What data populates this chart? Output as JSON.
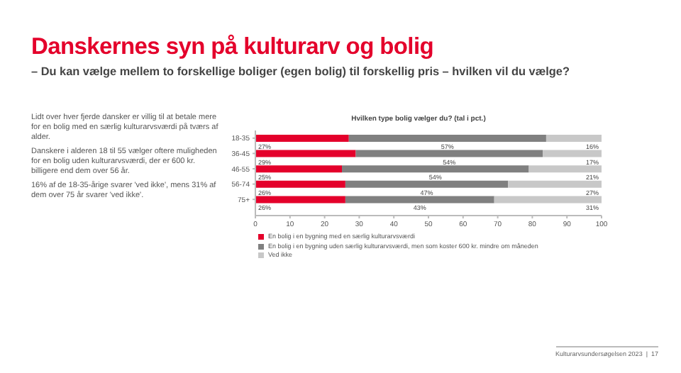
{
  "chart_data": {
    "type": "bar",
    "orientation": "horizontal",
    "stacked": true,
    "title": "Danskernes syn på kulturarv og bolig",
    "subtitle": "– Du kan vælge mellem to forskellige boliger (egen bolig) til forskellig pris – hvilken vil du vælge?",
    "annotations": [
      "Hvilken type bolig vælger du? (tal i pct.)",
      "Lidt over hver fjerde dansker er villig til at betale mere for en bolig med en særlig kulturarvsværdi på tværs af alder.",
      "Danskere i alderen 18 til 55 vælger oftere muligheden for en bolig uden kulturarvsværdi, der er 600 kr. billigere end dem over 56 år.",
      "16% af de 18-35-årige svarer 'ved ikke', mens 31% af dem over 75 år svarer 'ved ikke'.",
      "Kulturarvsundersøgelsen 2023  |  17"
    ],
    "categories": [
      "18-35",
      "36-45",
      "46-55",
      "56-74",
      "75+"
    ],
    "series": [
      {
        "name": "En bolig i en bygning med en særlig kulturarvsværdi",
        "color": "#e4002b",
        "values": [
          27,
          29,
          25,
          26,
          26
        ],
        "value_labels": [
          "27%",
          "29%",
          "25%",
          "26%",
          "26%"
        ]
      },
      {
        "name": "En bolig i en bygning uden særlig kulturarvsværdi, men som koster 600 kr. mindre om måneden",
        "color": "#808080",
        "values": [
          57,
          54,
          54,
          47,
          43
        ],
        "value_labels": [
          "57%",
          "54%",
          "54%",
          "47%",
          "43%"
        ]
      },
      {
        "name": "Ved ikke",
        "color": "#c8c8c8",
        "values": [
          16,
          17,
          21,
          27,
          31
        ],
        "value_labels": [
          "16%",
          "17%",
          "21%",
          "27%",
          "31%"
        ]
      }
    ],
    "xlim": [
      0,
      100
    ],
    "xticks": [
      0,
      10,
      20,
      30,
      40,
      50,
      60,
      70,
      80,
      90,
      100
    ],
    "legend": "bottom left"
  }
}
